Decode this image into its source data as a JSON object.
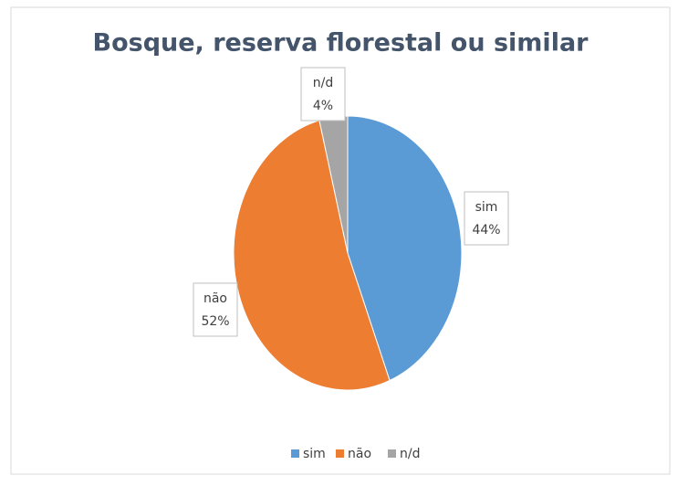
{
  "chart_data": {
    "type": "pie",
    "title": "Bosque, reserva florestal ou similar",
    "categories": [
      "sim",
      "não",
      "n/d"
    ],
    "values": [
      44,
      52,
      4
    ],
    "value_labels": [
      "44%",
      "52%",
      "4%"
    ],
    "colors": [
      "#5b9bd5",
      "#ed7d31",
      "#a5a5a5"
    ],
    "legend": "bottom"
  }
}
